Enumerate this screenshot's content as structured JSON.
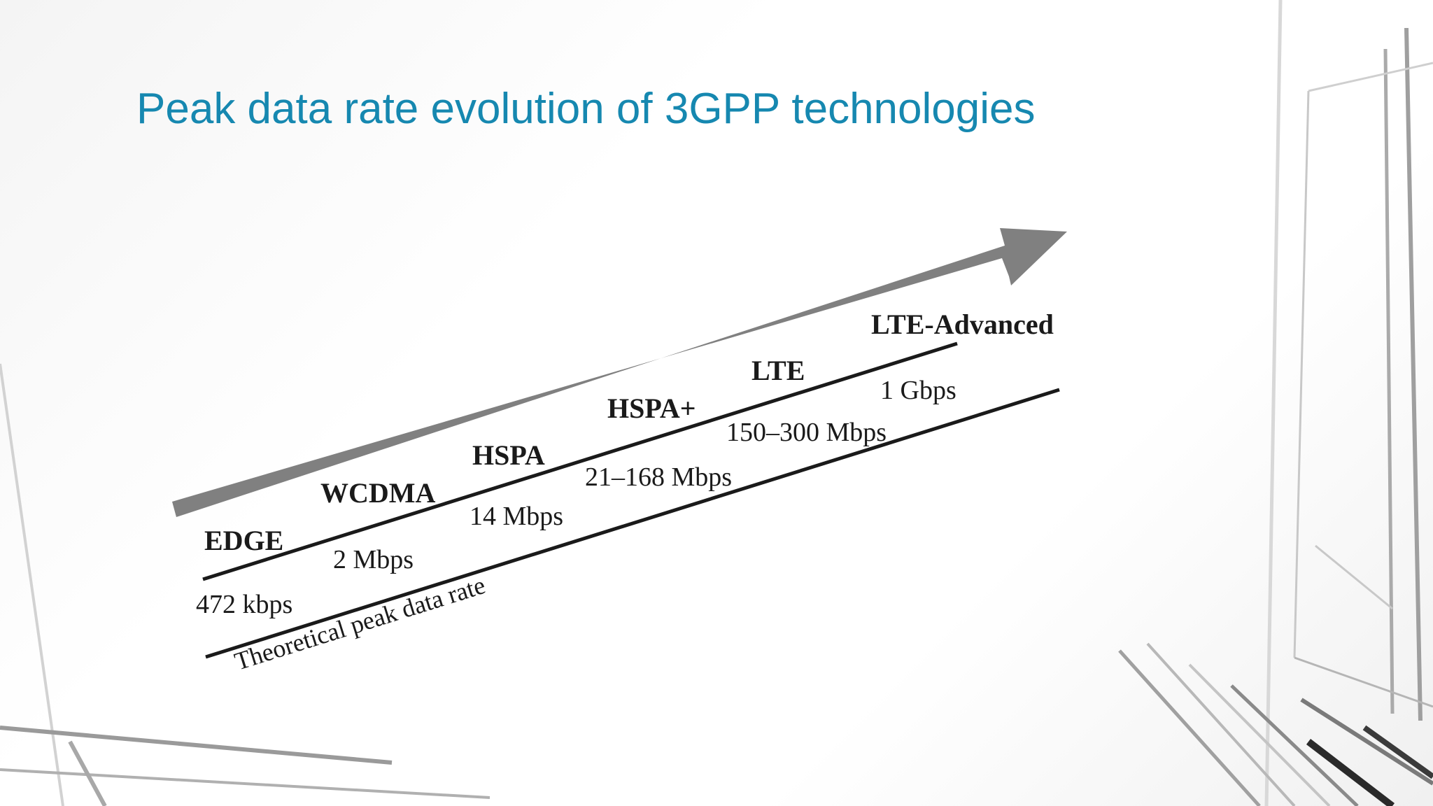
{
  "slide": {
    "title": "Peak data rate evolution of 3GPP technologies"
  },
  "diagram": {
    "axis_label": "Theoretical peak data rate",
    "technologies": [
      {
        "name": "EDGE",
        "rate": "472 kbps"
      },
      {
        "name": "WCDMA",
        "rate": "2 Mbps"
      },
      {
        "name": "HSPA",
        "rate": "14 Mbps"
      },
      {
        "name": "HSPA+",
        "rate": "21–168 Mbps"
      },
      {
        "name": "LTE",
        "rate": "150–300 Mbps"
      },
      {
        "name": "LTE-Advanced",
        "rate": "1 Gbps"
      }
    ]
  },
  "colors": {
    "title": "#1688b0",
    "arrow": "#808080",
    "line": "#1a1a1a",
    "text": "#1a1a1a"
  }
}
